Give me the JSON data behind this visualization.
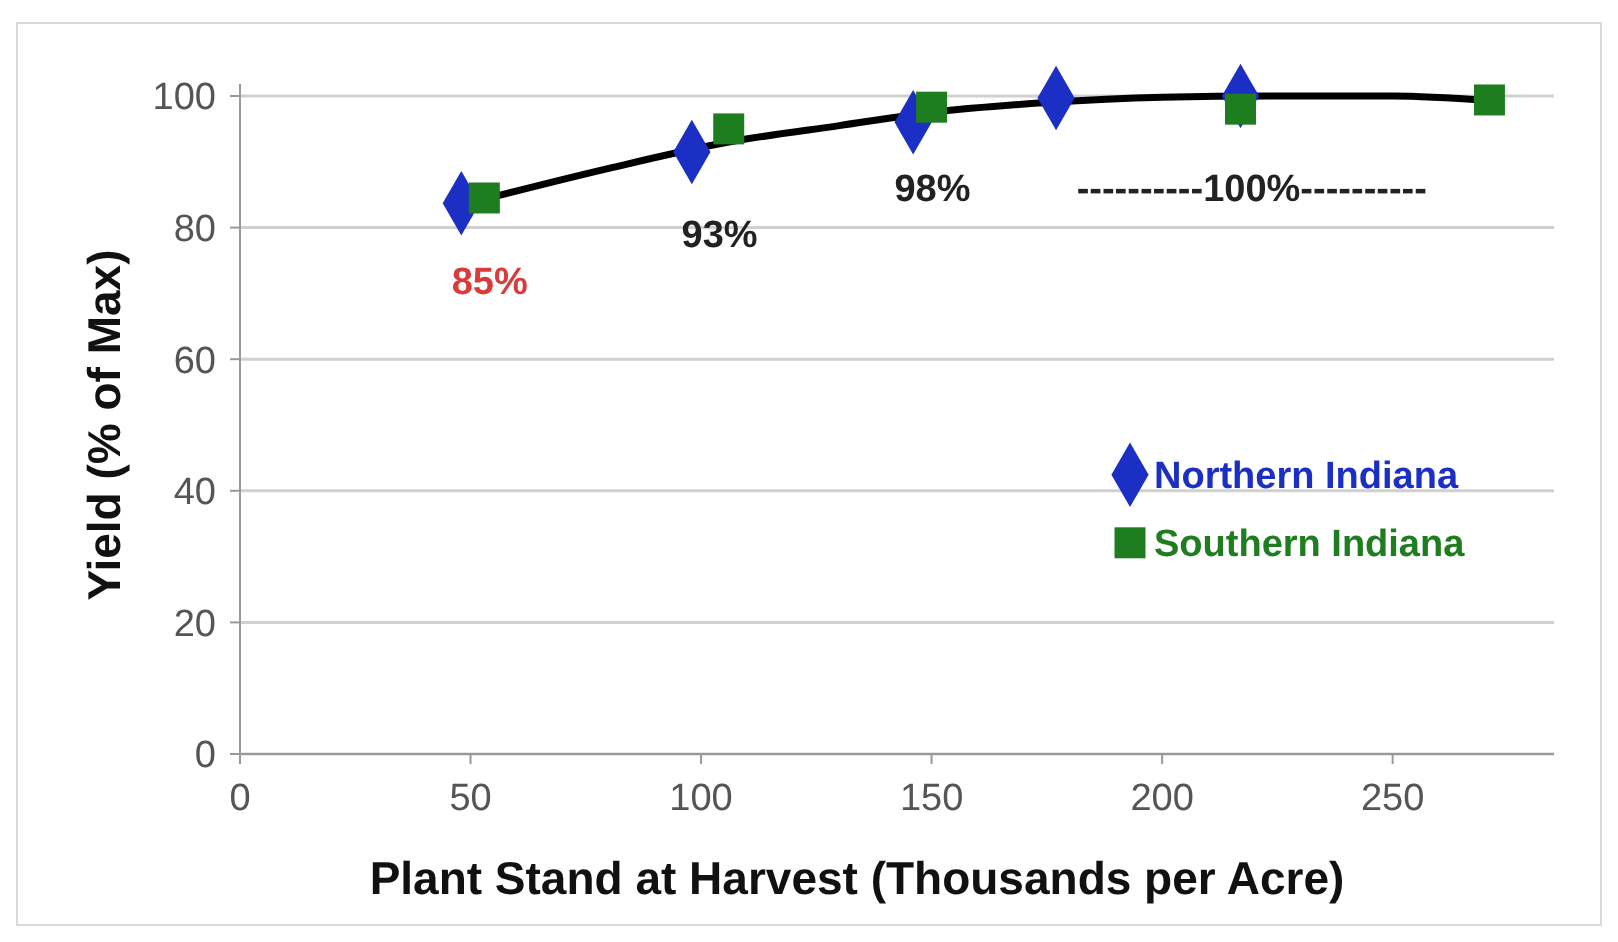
{
  "chart_data": {
    "type": "scatter",
    "xlabel": "Plant Stand at Harvest (Thousands per Acre)",
    "ylabel": "Yield (% of Max)",
    "xlim": [
      0,
      285
    ],
    "xticks": [
      0,
      50,
      100,
      150,
      200,
      250
    ],
    "ylim": [
      0,
      100
    ],
    "yticks": [
      0,
      20,
      40,
      60,
      80,
      100
    ],
    "grid": "y",
    "legend": "right",
    "series": [
      {
        "type": "line",
        "color": "#000000",
        "marker": "none",
        "x": [
          54,
          80,
          106,
          130,
          150,
          175,
          200,
          225,
          250,
          271
        ],
        "values": [
          84.5,
          89,
          93,
          95.5,
          97.5,
          99,
          99.8,
          100,
          100,
          99.3
        ]
      },
      {
        "name": "Northern Indiana",
        "color": "#1c2fc4",
        "marker": "diamond",
        "x": [
          48,
          98,
          146,
          177,
          217
        ],
        "values": [
          83.7,
          91.5,
          96,
          99.7,
          100
        ]
      },
      {
        "name": "Southern Indiana",
        "color": "#1e7d1e",
        "marker": "square",
        "x": [
          53,
          106,
          150,
          217,
          271
        ],
        "values": [
          84.5,
          95,
          98.3,
          98,
          99.4
        ]
      }
    ],
    "annotations": [
      "85%",
      "93%",
      "98%",
      "----------100%----------"
    ]
  }
}
